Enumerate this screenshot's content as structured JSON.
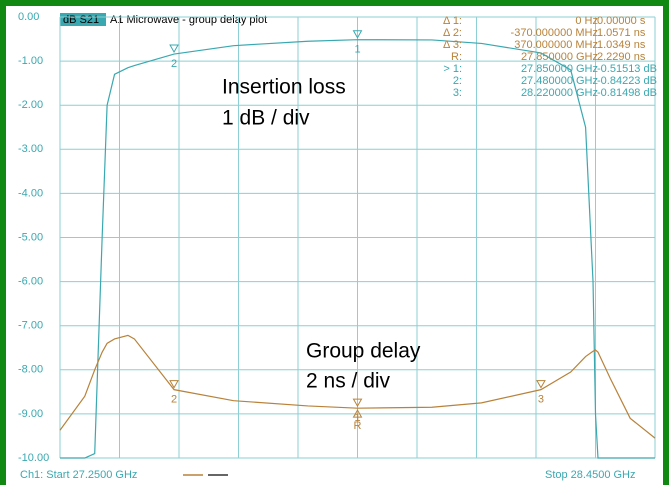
{
  "chart_data": {
    "type": "line",
    "title": "A1 Microwave - group delay plot",
    "trace_label": "dB S21",
    "x": [
      27.25,
      27.3,
      27.32,
      27.335,
      27.345,
      27.36,
      27.387,
      27.4,
      27.48,
      27.6,
      27.75,
      27.85,
      28.0,
      28.1,
      28.22,
      28.28,
      28.31,
      28.325,
      28.33,
      28.335,
      28.36,
      28.4,
      28.45
    ],
    "series": [
      {
        "name": "Insertion loss",
        "color": "#3aa8b0",
        "values": [
          -10,
          -10,
          -9.9,
          -5,
          -2,
          -1.3,
          -1.15,
          -1.1,
          -0.84,
          -0.65,
          -0.55,
          -0.515,
          -0.52,
          -0.6,
          -0.815,
          -1.2,
          -2.5,
          -6,
          -9,
          -10,
          -10,
          -10,
          -10
        ]
      },
      {
        "name": "Group delay",
        "color": "#b8823a",
        "values": [
          -9.37,
          -8.6,
          -8.0,
          -7.6,
          -7.4,
          -7.3,
          -7.22,
          -7.3,
          -8.45,
          -8.7,
          -8.82,
          -8.87,
          -8.85,
          -8.75,
          -8.45,
          -8.05,
          -7.7,
          -7.58,
          -7.55,
          -7.6,
          -8.2,
          -9.1,
          -9.55
        ]
      }
    ],
    "xlim": [
      27.25,
      28.45
    ],
    "xticks": [
      27.25,
      27.37,
      27.49,
      27.61,
      27.73,
      27.85,
      27.97,
      28.09,
      28.21,
      28.33,
      28.45
    ],
    "ylim": [
      -10,
      0
    ],
    "yticks": [
      {
        "value": 0,
        "label": "0.00"
      },
      {
        "value": -1,
        "label": "-1.00"
      },
      {
        "value": -2,
        "label": "-2.00"
      },
      {
        "value": -3,
        "label": "-3.00"
      },
      {
        "value": -4,
        "label": "-4.00"
      },
      {
        "value": -5,
        "label": "-5.00"
      },
      {
        "value": -6,
        "label": "-6.00"
      },
      {
        "value": -7,
        "label": "-7.00"
      },
      {
        "value": -8,
        "label": "-8.00"
      },
      {
        "value": -9,
        "label": "-9.00"
      },
      {
        "value": -10,
        "label": "-10.00"
      }
    ],
    "grid": true,
    "markers": [
      {
        "label": "1",
        "x": 27.85,
        "y": -0.515,
        "series": 0
      },
      {
        "label": "2",
        "x": 27.48,
        "y": -0.84,
        "series": 0
      },
      {
        "label": "1",
        "x": 27.85,
        "y": -8.87,
        "series": 1
      },
      {
        "label": "2",
        "x": 27.48,
        "y": -8.45,
        "series": 1
      },
      {
        "label": "3",
        "x": 28.22,
        "y": -8.45,
        "series": 1
      },
      {
        "label": "R",
        "x": 27.85,
        "y": -8.87,
        "series": 1
      }
    ],
    "annotations": [
      "Insertion loss",
      "1 dB / div",
      "Group delay",
      "2 ns / div"
    ],
    "marker_table": [
      {
        "series": 1,
        "cells": [
          "Δ 1:",
          "0 Hz",
          "0.00000 s"
        ]
      },
      {
        "series": 1,
        "cells": [
          "Δ 2:",
          "-370.000000 MHz",
          "1.0571 ns"
        ]
      },
      {
        "series": 1,
        "cells": [
          "Δ 3:",
          "370.000000 MHz",
          "1.0349 ns"
        ]
      },
      {
        "series": 1,
        "cells": [
          "R:",
          "27.850000 GHz",
          "2.2290 ns"
        ]
      },
      {
        "series": 0,
        "cells": [
          "> 1:",
          "27.850000 GHz",
          "-0.51513 dB"
        ]
      },
      {
        "series": 0,
        "cells": [
          "2:",
          "27.480000 GHz",
          "-0.84223 dB"
        ]
      },
      {
        "series": 0,
        "cells": [
          "3:",
          "28.220000 GHz",
          "-0.81498 dB"
        ]
      }
    ],
    "start_label": "Ch1: Start  27.2500 GHz",
    "stop_label": "Stop  28.4500 GHz"
  }
}
